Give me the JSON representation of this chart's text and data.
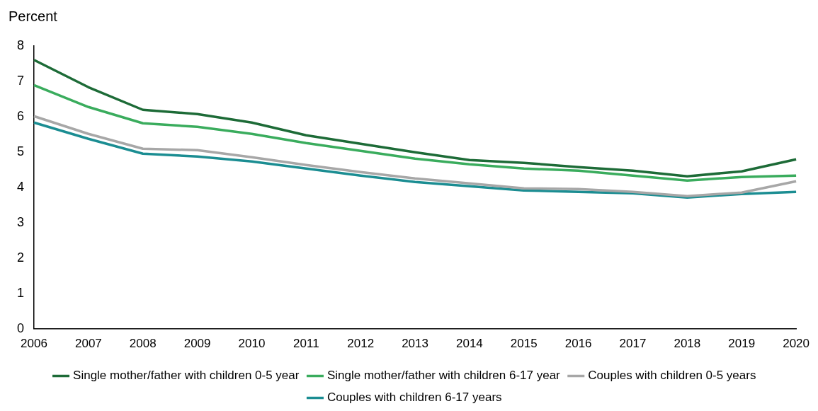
{
  "chart_data": {
    "type": "line",
    "ylabel": "Percent",
    "categories": [
      "2006",
      "2007",
      "2008",
      "2009",
      "2010",
      "2011",
      "2012",
      "2013",
      "2014",
      "2015",
      "2016",
      "2017",
      "2018",
      "2019",
      "2020"
    ],
    "series": [
      {
        "name": "Single mother/father with children 0-5 year",
        "color": "#1d6b37",
        "values": [
          7.6,
          6.83,
          6.19,
          6.07,
          5.83,
          5.47,
          5.23,
          4.99,
          4.77,
          4.69,
          4.57,
          4.47,
          4.31,
          4.45,
          4.79
        ]
      },
      {
        "name": "Single mother/father with children 6-17 year",
        "color": "#3aac5d",
        "values": [
          6.89,
          6.27,
          5.81,
          5.71,
          5.51,
          5.25,
          5.03,
          4.81,
          4.65,
          4.53,
          4.47,
          4.33,
          4.19,
          4.29,
          4.33
        ]
      },
      {
        "name": "Couples with children 0-5 years",
        "color": "#a7a7a7",
        "values": [
          6.01,
          5.51,
          5.09,
          5.05,
          4.85,
          4.63,
          4.43,
          4.25,
          4.11,
          3.97,
          3.95,
          3.87,
          3.75,
          3.85,
          4.17
        ]
      },
      {
        "name": "Couples with children 6-17 years",
        "color": "#1b8d92",
        "values": [
          5.83,
          5.37,
          4.95,
          4.87,
          4.73,
          4.53,
          4.33,
          4.15,
          4.03,
          3.91,
          3.87,
          3.83,
          3.71,
          3.81,
          3.87
        ]
      }
    ],
    "ylim": [
      0,
      8
    ],
    "yticks": [
      0,
      1,
      2,
      3,
      4,
      5,
      6,
      7,
      8
    ],
    "grid": false,
    "legend": "bottom",
    "marker": "none",
    "line_style": "solid"
  }
}
